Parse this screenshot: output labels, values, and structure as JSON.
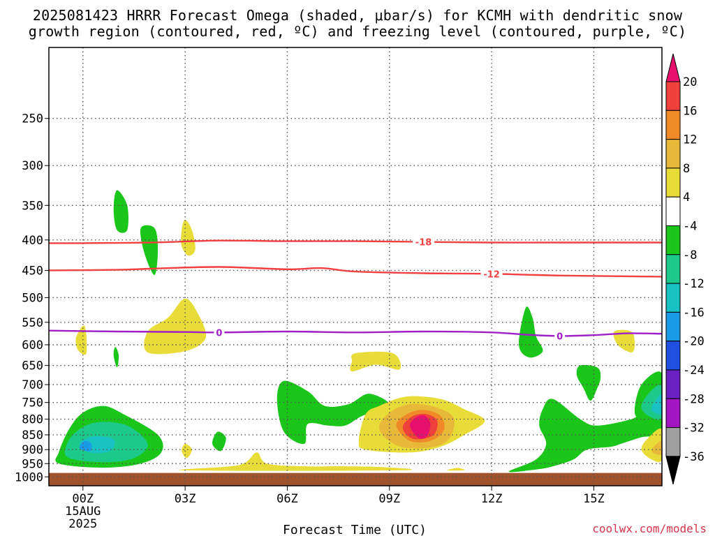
{
  "title_line1": "2025081423 HRRR Forecast Omega (shaded, μbar/s) for KCMH with dendritic snow",
  "title_line2": "growth region (contoured, red, ºC) and freezing level (contoured, purple, ºC)",
  "credit": "coolwx.com/models",
  "chart_data": {
    "type": "contour",
    "title": "2025081423 HRRR Forecast Omega (shaded, μbar/s) for KCMH with dendritic snow growth region (contoured, red, ºC) and freezing level (contoured, purple, ºC)",
    "xlabel": "Forecast Time (UTC)",
    "ylabel": "",
    "x_unit": "hours",
    "xlim": [
      -1,
      17
    ],
    "x_ticks": [
      {
        "x": 0,
        "lines": [
          "00Z",
          "15AUG",
          "2025"
        ]
      },
      {
        "x": 3,
        "lines": [
          "03Z"
        ]
      },
      {
        "x": 6,
        "lines": [
          "06Z"
        ]
      },
      {
        "x": 9,
        "lines": [
          "09Z"
        ]
      },
      {
        "x": 12,
        "lines": [
          "12Z"
        ]
      },
      {
        "x": 15,
        "lines": [
          "15Z"
        ]
      }
    ],
    "y_scale": "log",
    "y_unit": "hPa",
    "ylim": [
      1035,
      190
    ],
    "y_ticks": [
      250,
      300,
      350,
      400,
      450,
      500,
      550,
      600,
      650,
      700,
      750,
      800,
      850,
      900,
      950,
      1000
    ],
    "grid": true,
    "ground": {
      "above_p": 985,
      "color": "#a0522d"
    },
    "colorbar": {
      "labels": [
        "20",
        "16",
        "12",
        "8",
        "4",
        "-4",
        "-8",
        "-12",
        "-16",
        "-20",
        "-24",
        "-28",
        "-32",
        "-36"
      ],
      "colors": [
        "#e8106f",
        "#f0403c",
        "#f08a28",
        "#e8b838",
        "#e8dc38",
        "#ffffff",
        "#19c619",
        "#1cc98a",
        "#18c2c2",
        "#1a9be8",
        "#1f4fe0",
        "#6a1fc2",
        "#a314c2",
        "#a0a0a0",
        "#000000"
      ]
    },
    "temperature_contours": [
      {
        "label": "-18",
        "color": "#f04040",
        "label_x": 10.0,
        "points": [
          [
            -1,
            405
          ],
          [
            0,
            405
          ],
          [
            2,
            404
          ],
          [
            4,
            401
          ],
          [
            6,
            402
          ],
          [
            8,
            402
          ],
          [
            10,
            403
          ],
          [
            12,
            404
          ],
          [
            14,
            404
          ],
          [
            17,
            404
          ]
        ]
      },
      {
        "label": "-12",
        "color": "#f04040",
        "label_x": 12.0,
        "points": [
          [
            -1,
            450
          ],
          [
            1,
            449
          ],
          [
            2,
            447
          ],
          [
            4,
            444
          ],
          [
            6,
            448
          ],
          [
            7,
            446
          ],
          [
            8,
            452
          ],
          [
            10,
            455
          ],
          [
            12,
            456
          ],
          [
            14,
            459
          ],
          [
            17,
            461
          ]
        ]
      },
      {
        "label": "0",
        "color": "#a020c8",
        "label_x": 4.0,
        "label_x2": 14.0,
        "points": [
          [
            -1,
            568
          ],
          [
            1,
            570
          ],
          [
            3,
            571
          ],
          [
            4,
            572
          ],
          [
            6,
            570
          ],
          [
            8,
            572
          ],
          [
            10,
            570
          ],
          [
            12,
            572
          ],
          [
            13,
            577
          ],
          [
            14,
            580
          ],
          [
            15,
            578
          ],
          [
            16,
            574
          ],
          [
            17,
            575
          ]
        ]
      }
    ],
    "omega_features": [
      {
        "color": "#19c619",
        "pts": [
          [
            -0.7,
            907
          ],
          [
            -0.4,
            830
          ],
          [
            0,
            780
          ],
          [
            0.6,
            760
          ],
          [
            1.2,
            785
          ],
          [
            2.2,
            850
          ],
          [
            2.3,
            910
          ],
          [
            1.7,
            950
          ],
          [
            0.6,
            965
          ],
          [
            -0.7,
            950
          ]
        ]
      },
      {
        "color": "#1cc98a",
        "pts": [
          [
            -0.5,
            890
          ],
          [
            -0.2,
            840
          ],
          [
            0.4,
            810
          ],
          [
            1.3,
            820
          ],
          [
            1.9,
            880
          ],
          [
            1.5,
            930
          ],
          [
            0.6,
            945
          ],
          [
            -0.4,
            930
          ]
        ]
      },
      {
        "color": "#18c2c2",
        "pts": [
          [
            -0.1,
            880
          ],
          [
            0.3,
            855
          ],
          [
            0.9,
            865
          ],
          [
            0.8,
            905
          ],
          [
            0.2,
            910
          ]
        ]
      },
      {
        "color": "#1a9be8",
        "pts": [
          [
            -0.1,
            895
          ],
          [
            0.05,
            870
          ],
          [
            0.25,
            880
          ],
          [
            0.2,
            905
          ]
        ]
      },
      {
        "color": "#19c619",
        "pts": [
          [
            0.9,
            355
          ],
          [
            1.0,
            330
          ],
          [
            1.3,
            350
          ],
          [
            1.3,
            385
          ],
          [
            1.0,
            385
          ]
        ]
      },
      {
        "color": "#19c619",
        "pts": [
          [
            1.7,
            382
          ],
          [
            2.1,
            382
          ],
          [
            2.2,
            415
          ],
          [
            2.1,
            458
          ],
          [
            1.8,
            420
          ]
        ]
      },
      {
        "color": "#e8dc38",
        "pts": [
          [
            2.9,
            410
          ],
          [
            2.9,
            385
          ],
          [
            3.0,
            370
          ],
          [
            3.2,
            385
          ],
          [
            3.3,
            415
          ],
          [
            3.1,
            425
          ]
        ]
      },
      {
        "color": "#e8dc38",
        "pts": [
          [
            1.9,
            618
          ],
          [
            1.9,
            570
          ],
          [
            2.5,
            540
          ],
          [
            3.0,
            502
          ],
          [
            3.4,
            535
          ],
          [
            3.6,
            585
          ],
          [
            3.0,
            615
          ]
        ]
      },
      {
        "color": "#e8dc38",
        "pts": [
          [
            -0.15,
            612
          ],
          [
            -0.2,
            583
          ],
          [
            0.05,
            558
          ],
          [
            0.1,
            620
          ]
        ]
      },
      {
        "color": "#19c619",
        "pts": [
          [
            0.9,
            625
          ],
          [
            0.95,
            605
          ],
          [
            1.05,
            625
          ],
          [
            1.0,
            655
          ]
        ]
      },
      {
        "color": "#19c619",
        "pts": [
          [
            3.8,
            880
          ],
          [
            3.95,
            840
          ],
          [
            4.2,
            860
          ],
          [
            4.05,
            905
          ]
        ]
      },
      {
        "color": "#e8dc38",
        "pts": [
          [
            2.9,
            905
          ],
          [
            3.0,
            880
          ],
          [
            3.2,
            900
          ],
          [
            3.05,
            930
          ]
        ]
      },
      {
        "color": "#19c619",
        "pts": [
          [
            5.7,
            740
          ],
          [
            5.9,
            690
          ],
          [
            6.6,
            718
          ],
          [
            7.1,
            760
          ],
          [
            7.8,
            755
          ],
          [
            8.4,
            725
          ],
          [
            9.0,
            758
          ],
          [
            8.2,
            790
          ],
          [
            7.7,
            820
          ],
          [
            7.2,
            820
          ],
          [
            6.6,
            815
          ],
          [
            6.5,
            880
          ],
          [
            5.9,
            840
          ]
        ]
      },
      {
        "color": "#e8dc38",
        "pts": [
          [
            3.0,
            975
          ],
          [
            4.6,
            955
          ],
          [
            5.1,
            910
          ],
          [
            5.4,
            950
          ],
          [
            6.5,
            960
          ],
          [
            7.6,
            960
          ],
          [
            8.8,
            963
          ],
          [
            9.3,
            975
          ]
        ]
      },
      {
        "color": "#e8dc38",
        "pts": [
          [
            7.9,
            640
          ],
          [
            8.0,
            620
          ],
          [
            9.1,
            620
          ],
          [
            9.3,
            660
          ],
          [
            8.6,
            648
          ],
          [
            7.9,
            665
          ]
        ]
      },
      {
        "color": "#e8dc38",
        "pts": [
          [
            8.1,
            870
          ],
          [
            8.3,
            785
          ],
          [
            8.7,
            760
          ],
          [
            9.5,
            733
          ],
          [
            10.5,
            740
          ],
          [
            11.2,
            770
          ],
          [
            11.8,
            805
          ],
          [
            11.2,
            850
          ],
          [
            10.5,
            890
          ],
          [
            9.6,
            910
          ],
          [
            8.3,
            900
          ]
        ]
      },
      {
        "color": "#e8b838",
        "pts": [
          [
            8.7,
            830
          ],
          [
            9.0,
            780
          ],
          [
            9.6,
            755
          ],
          [
            10.4,
            765
          ],
          [
            10.9,
            800
          ],
          [
            10.7,
            870
          ],
          [
            10.0,
            895
          ],
          [
            9.2,
            885
          ]
        ]
      },
      {
        "color": "#f08a28",
        "pts": [
          [
            9.2,
            820
          ],
          [
            9.5,
            785
          ],
          [
            10.0,
            772
          ],
          [
            10.5,
            790
          ],
          [
            10.6,
            835
          ],
          [
            10.2,
            870
          ],
          [
            9.6,
            870
          ]
        ]
      },
      {
        "color": "#f0403c",
        "pts": [
          [
            9.4,
            820
          ],
          [
            9.7,
            790
          ],
          [
            10.1,
            785
          ],
          [
            10.4,
            805
          ],
          [
            10.3,
            850
          ],
          [
            9.8,
            865
          ],
          [
            9.5,
            850
          ]
        ]
      },
      {
        "color": "#e8106f",
        "pts": [
          [
            9.6,
            820
          ],
          [
            9.8,
            793
          ],
          [
            10.05,
            790
          ],
          [
            10.2,
            815
          ],
          [
            10.1,
            855
          ],
          [
            9.85,
            860
          ]
        ]
      },
      {
        "color": "#e8dc38",
        "pts": [
          [
            10.7,
            975
          ],
          [
            11.0,
            966
          ],
          [
            11.2,
            975
          ]
        ]
      },
      {
        "color": "#19c619",
        "pts": [
          [
            12.5,
            980
          ],
          [
            13.3,
            935
          ],
          [
            13.6,
            880
          ],
          [
            13.4,
            820
          ],
          [
            13.5,
            770
          ],
          [
            13.8,
            740
          ],
          [
            14.6,
            800
          ],
          [
            15.1,
            820
          ],
          [
            16.1,
            800
          ],
          [
            16.4,
            780
          ],
          [
            17,
            770
          ],
          [
            17,
            845
          ],
          [
            16.4,
            858
          ],
          [
            15.8,
            880
          ],
          [
            15.5,
            890
          ],
          [
            14.8,
            900
          ],
          [
            14.4,
            935
          ],
          [
            13.8,
            960
          ],
          [
            13.3,
            972
          ]
        ]
      },
      {
        "color": "#19c619",
        "pts": [
          [
            12.8,
            600
          ],
          [
            13.0,
            520
          ],
          [
            13.2,
            540
          ],
          [
            13.3,
            580
          ],
          [
            13.5,
            615
          ],
          [
            13.1,
            630
          ]
        ]
      },
      {
        "color": "#19c619",
        "pts": [
          [
            14.5,
            675
          ],
          [
            14.6,
            650
          ],
          [
            15.1,
            655
          ],
          [
            15.2,
            680
          ],
          [
            15.1,
            710
          ],
          [
            14.9,
            745
          ],
          [
            14.7,
            710
          ]
        ]
      },
      {
        "color": "#19c619",
        "pts": [
          [
            16.2,
            780
          ],
          [
            16.4,
            700
          ],
          [
            17,
            670
          ],
          [
            17,
            810
          ],
          [
            16.5,
            805
          ]
        ]
      },
      {
        "color": "#1cc98a",
        "pts": [
          [
            16.4,
            760
          ],
          [
            16.7,
            715
          ],
          [
            17,
            705
          ],
          [
            17,
            795
          ],
          [
            16.6,
            790
          ]
        ]
      },
      {
        "color": "#18c2c2",
        "pts": [
          [
            16.7,
            765
          ],
          [
            17,
            725
          ],
          [
            17,
            780
          ],
          [
            16.8,
            780
          ]
        ]
      },
      {
        "color": "#e8dc38",
        "pts": [
          [
            15.6,
            570
          ],
          [
            16.1,
            570
          ],
          [
            16.2,
            600
          ],
          [
            16.1,
            618
          ],
          [
            15.7,
            600
          ]
        ]
      },
      {
        "color": "#e8dc38",
        "pts": [
          [
            16.4,
            900
          ],
          [
            16.6,
            860
          ],
          [
            17,
            832
          ],
          [
            17,
            935
          ],
          [
            16.7,
            935
          ]
        ]
      },
      {
        "color": "#e8b838",
        "pts": [
          [
            16.7,
            900
          ],
          [
            16.9,
            875
          ],
          [
            17,
            872
          ],
          [
            17,
            915
          ],
          [
            16.8,
            915
          ]
        ]
      }
    ]
  }
}
